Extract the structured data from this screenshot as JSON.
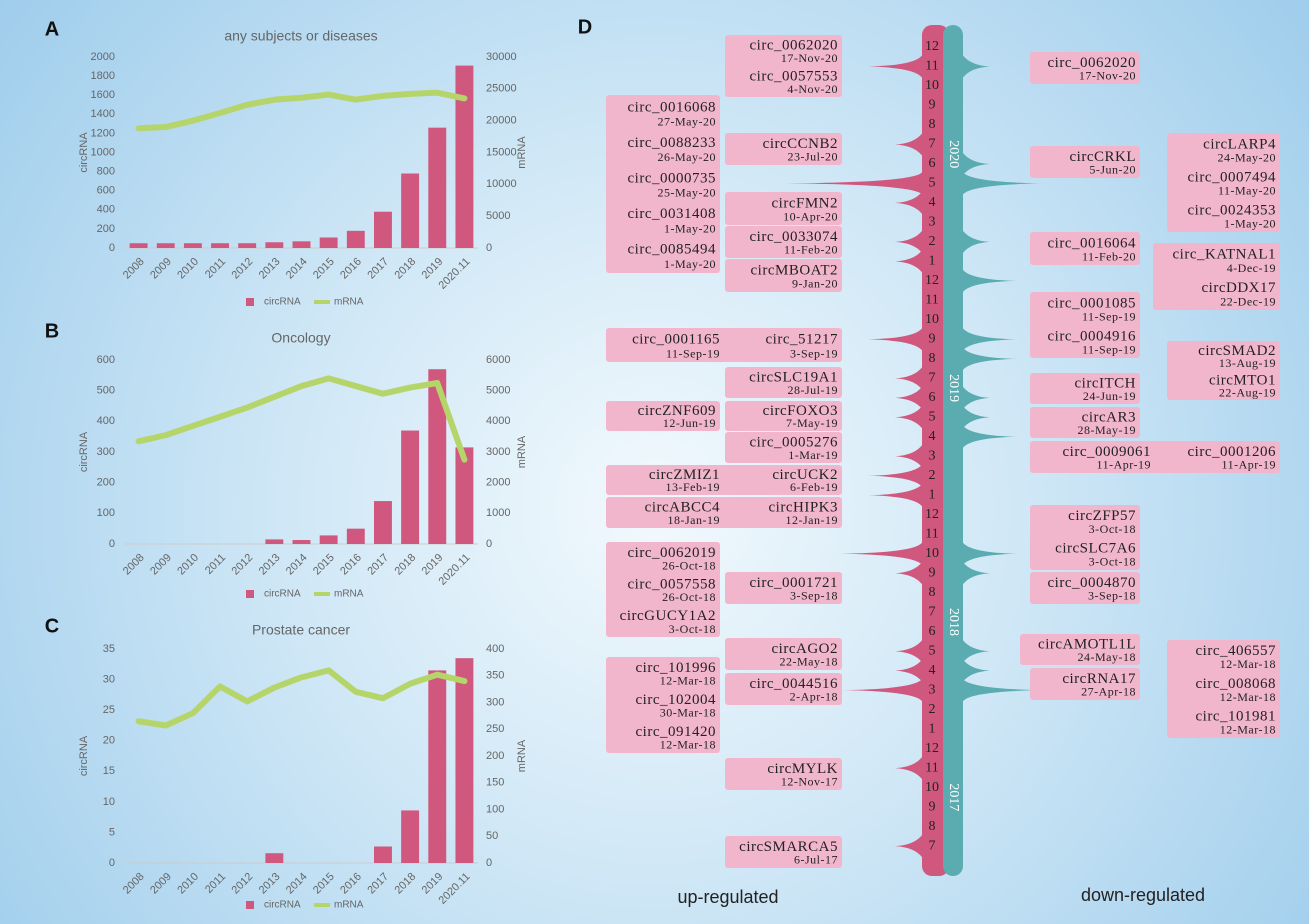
{
  "chart_data": [
    {
      "type": "combo",
      "label": "A",
      "title": "any subjects or diseases",
      "ylabel": "circRNA",
      "y2label": "mRNA",
      "categories": [
        "2008",
        "2009",
        "2010",
        "2011",
        "2012",
        "2013",
        "2014",
        "2015",
        "2016",
        "2017",
        "2018",
        "2019",
        "2020.11"
      ],
      "series": [
        {
          "name": "circRNA",
          "color": "#d0587e",
          "values": [
            50,
            50,
            50,
            50,
            50,
            60,
            70,
            110,
            180,
            380,
            780,
            1260,
            1910
          ]
        },
        {
          "name": "mRNA",
          "color": "#b5d56a",
          "axis": "y2",
          "values": [
            18800,
            19000,
            20000,
            21200,
            22500,
            23300,
            23600,
            24100,
            23300,
            23900,
            24200,
            24400,
            23500
          ]
        }
      ],
      "ylim": [
        0,
        2000
      ],
      "yticks": [
        0,
        200,
        400,
        600,
        800,
        1000,
        1200,
        1400,
        1600,
        1800,
        2000
      ],
      "y2lim": [
        0,
        30000
      ],
      "y2ticks": [
        0,
        5000,
        10000,
        15000,
        20000,
        25000,
        30000
      ]
    },
    {
      "type": "combo",
      "label": "B",
      "title": "Oncology",
      "ylabel": "circRNA",
      "y2label": "mRNA",
      "categories": [
        "2008",
        "2009",
        "2010",
        "2011",
        "2012",
        "2013",
        "2014",
        "2015",
        "2016",
        "2017",
        "2018",
        "2019",
        "2020.11"
      ],
      "series": [
        {
          "name": "circRNA",
          "color": "#d0587e",
          "values": [
            0,
            0,
            0,
            0,
            0,
            15,
            13,
            28,
            50,
            140,
            370,
            570,
            315
          ]
        },
        {
          "name": "mRNA",
          "color": "#b5d56a",
          "axis": "y2",
          "values": [
            3350,
            3550,
            3850,
            4150,
            4450,
            4800,
            5150,
            5400,
            5150,
            4900,
            5100,
            5250,
            2750
          ]
        }
      ],
      "ylim": [
        0,
        600
      ],
      "yticks": [
        0,
        100,
        200,
        300,
        400,
        500,
        600
      ],
      "y2lim": [
        0,
        6000
      ],
      "y2ticks": [
        0,
        1000,
        2000,
        3000,
        4000,
        5000,
        6000
      ]
    },
    {
      "type": "combo",
      "label": "C",
      "title": "Prostate cancer",
      "ylabel": "circRNA",
      "y2label": "mRNA",
      "categories": [
        "2008",
        "2009",
        "2010",
        "2011",
        "2012",
        "2013",
        "2014",
        "2015",
        "2016",
        "2017",
        "2018",
        "2019",
        "2020.11"
      ],
      "series": [
        {
          "name": "circRNA",
          "color": "#d0587e",
          "values": [
            0,
            0,
            0,
            0,
            0,
            1.6,
            0,
            0,
            0,
            2.7,
            8.6,
            31.5,
            33.5
          ]
        },
        {
          "name": "mRNA",
          "color": "#b5d56a",
          "axis": "y2",
          "values": [
            265,
            257,
            280,
            330,
            302,
            328,
            347,
            360,
            320,
            308,
            335,
            352,
            340
          ]
        }
      ],
      "ylim": [
        0,
        35
      ],
      "yticks": [
        0,
        5,
        10,
        15,
        20,
        25,
        30,
        35
      ],
      "y2lim": [
        0,
        400
      ],
      "y2ticks": [
        0,
        50,
        100,
        150,
        200,
        250,
        300,
        350,
        400
      ]
    }
  ],
  "timeline": {
    "label": "D",
    "up_label": "up-regulated",
    "down_label": "down-regulated",
    "up_color": "#d0587e",
    "down_color": "#5aacb0",
    "years": [
      {
        "label": "2020",
        "months": [
          12,
          11,
          10,
          9,
          8,
          7,
          6,
          5,
          4,
          3,
          2,
          1
        ],
        "up": [
          0,
          2,
          0,
          0,
          0,
          1,
          0,
          5,
          1,
          0,
          1,
          1
        ],
        "down": [
          0,
          1,
          0,
          0,
          0,
          0,
          1,
          3,
          0,
          0,
          1,
          0
        ]
      },
      {
        "label": "2019",
        "months": [
          12,
          11,
          10,
          9,
          8,
          7,
          6,
          5,
          4,
          3,
          2,
          1
        ],
        "up": [
          0,
          0,
          0,
          2,
          0,
          1,
          1,
          1,
          0,
          1,
          2,
          2
        ],
        "down": [
          2,
          0,
          0,
          2,
          2,
          0,
          1,
          1,
          2,
          0,
          0,
          0
        ]
      },
      {
        "label": "2018",
        "months": [
          12,
          11,
          10,
          9,
          8,
          7,
          6,
          5,
          4,
          3,
          2,
          1
        ],
        "up": [
          0,
          0,
          3,
          1,
          0,
          0,
          0,
          1,
          1,
          3,
          0,
          0
        ],
        "down": [
          0,
          0,
          2,
          1,
          0,
          0,
          0,
          1,
          1,
          3,
          0,
          0
        ]
      },
      {
        "label": "2017",
        "months": [
          12,
          11,
          10,
          9,
          8,
          7
        ],
        "up": [
          0,
          1,
          0,
          0,
          0,
          1
        ],
        "down": [
          0,
          0,
          0,
          0,
          0,
          0
        ]
      }
    ],
    "up": [
      [
        {
          "name": "circ_0062020",
          "date": "17-Nov-20"
        },
        {
          "name": "circ_0057553",
          "date": "4-Nov-20"
        }
      ],
      [
        {
          "name": "circ_0016068",
          "date": "27-May-20"
        },
        {
          "name": "circ_0088233",
          "date": "26-May-20"
        },
        {
          "name": "circ_0000735",
          "date": "25-May-20"
        },
        {
          "name": "circ_0031408",
          "date": "1-May-20"
        },
        {
          "name": "circ_0085494",
          "date": "1-May-20"
        }
      ],
      [
        {
          "name": "circCCNB2",
          "date": "23-Jul-20"
        }
      ],
      [
        {
          "name": "circFMN2",
          "date": "10-Apr-20"
        }
      ],
      [
        {
          "name": "circ_0033074",
          "date": "11-Feb-20"
        }
      ],
      [
        {
          "name": "circMBOAT2",
          "date": "9-Jan-20"
        }
      ],
      [
        {
          "name": "circ_0001165",
          "date": "11-Sep-19"
        },
        {
          "name": "circ_51217",
          "date": "3-Sep-19"
        }
      ],
      [
        {
          "name": "circSLC19A1",
          "date": "28-Jul-19"
        }
      ],
      [
        {
          "name": "circZNF609",
          "date": "12-Jun-19"
        }
      ],
      [
        {
          "name": "circFOXO3",
          "date": "7-May-19"
        }
      ],
      [
        {
          "name": "circ_0005276",
          "date": "1-Mar-19"
        }
      ],
      [
        {
          "name": "circZMIZ1",
          "date": "13-Feb-19"
        },
        {
          "name": "circUCK2",
          "date": "6-Feb-19"
        }
      ],
      [
        {
          "name": "circABCC4",
          "date": "18-Jan-19"
        },
        {
          "name": "circHIPK3",
          "date": "12-Jan-19"
        }
      ],
      [
        {
          "name": "circ_0062019",
          "date": "26-Oct-18"
        },
        {
          "name": "circ_0057558",
          "date": "26-Oct-18"
        },
        {
          "name": "circGUCY1A2",
          "date": "3-Oct-18"
        }
      ],
      [
        {
          "name": "circ_0001721",
          "date": "3-Sep-18"
        }
      ],
      [
        {
          "name": "circAGO2",
          "date": "22-May-18"
        }
      ],
      [
        {
          "name": "circ_101996",
          "date": "12-Mar-18"
        },
        {
          "name": "circ_102004",
          "date": "30-Mar-18"
        },
        {
          "name": "circ_091420",
          "date": "12-Mar-18"
        }
      ],
      [
        {
          "name": "circ_0044516",
          "date": "2-Apr-18"
        }
      ],
      [
        {
          "name": "circMYLK",
          "date": "12-Nov-17"
        }
      ],
      [
        {
          "name": "circSMARCA5",
          "date": "6-Jul-17"
        }
      ]
    ],
    "down": [
      [
        {
          "name": "circ_0062020",
          "date": "17-Nov-20"
        }
      ],
      [
        {
          "name": "circCRKL",
          "date": "5-Jun-20"
        }
      ],
      [
        {
          "name": "circLARP4",
          "date": "24-May-20"
        },
        {
          "name": "circ_0007494",
          "date": "11-May-20"
        },
        {
          "name": "circ_0024353",
          "date": "1-May-20"
        }
      ],
      [
        {
          "name": "circ_0016064",
          "date": "11-Feb-20"
        }
      ],
      [
        {
          "name": "circ_KATNAL1",
          "date": "4-Dec-19"
        },
        {
          "name": "circDDX17",
          "date": "22-Dec-19"
        }
      ],
      [
        {
          "name": "circ_0001085",
          "date": "11-Sep-19"
        },
        {
          "name": "circ_0004916",
          "date": "11-Sep-19"
        }
      ],
      [
        {
          "name": "circSMAD2",
          "date": "13-Aug-19"
        },
        {
          "name": "circMTO1",
          "date": "22-Aug-19"
        }
      ],
      [
        {
          "name": "circITCH",
          "date": "24-Jun-19"
        }
      ],
      [
        {
          "name": "circAR3",
          "date": "28-May-19"
        }
      ],
      [
        {
          "name": "circ_0009061",
          "date": "11-Apr-19"
        },
        {
          "name": "circ_0001206",
          "date": "11-Apr-19"
        }
      ],
      [
        {
          "name": "circZFP57",
          "date": "3-Oct-18"
        },
        {
          "name": "circSLC7A6",
          "date": "3-Oct-18"
        }
      ],
      [
        {
          "name": "circ_0004870",
          "date": "3-Sep-18"
        }
      ],
      [
        {
          "name": "circAMOTL1L",
          "date": "24-May-18"
        }
      ],
      [
        {
          "name": "circRNA17",
          "date": "27-Apr-18"
        }
      ],
      [
        {
          "name": "circ_406557",
          "date": "12-Mar-18"
        },
        {
          "name": "circ_008068",
          "date": "12-Mar-18"
        },
        {
          "name": "circ_101981",
          "date": "12-Mar-18"
        }
      ]
    ]
  }
}
